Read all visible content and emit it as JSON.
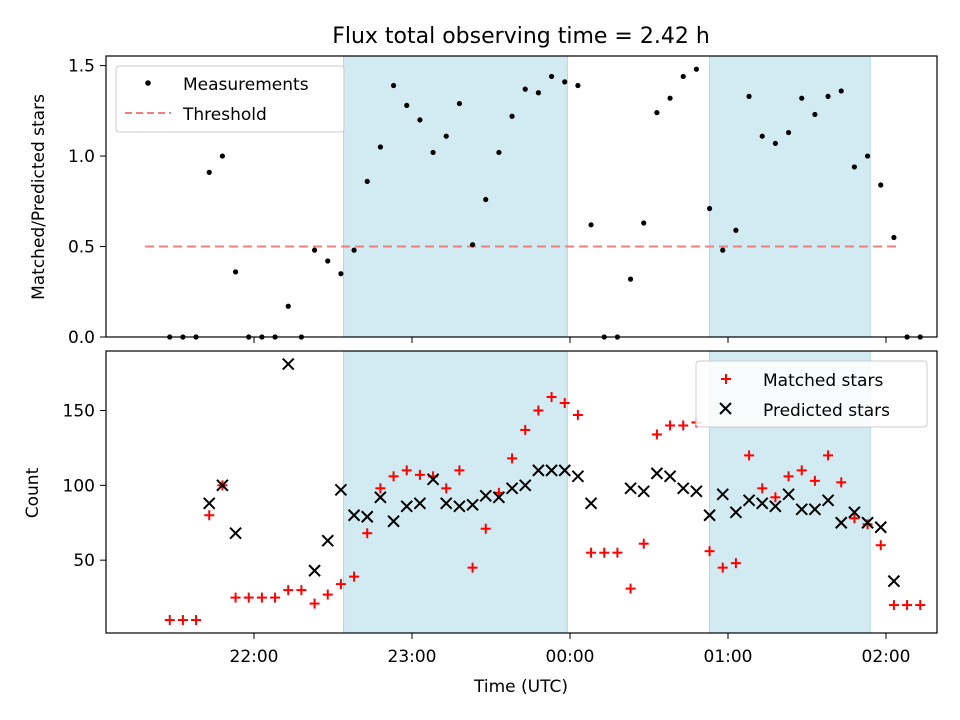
{
  "chart_data": [
    {
      "type": "scatter",
      "title": "Flux total observing time = 2.42 h",
      "xlabel": "",
      "ylabel": "Matched/Predicted stars",
      "ylim": [
        0,
        1.56
      ],
      "yticks": [
        "0.0",
        "0.5",
        "1.0",
        "1.5"
      ],
      "threshold": {
        "name": "Threshold",
        "value": 0.5,
        "x_range": [
          "21:33",
          "23:59"
        ],
        "x_range2": [
          "00:00",
          "02:06"
        ],
        "color": "#f08080"
      },
      "shaded_regions": [
        [
          "22:34",
          "23:59"
        ],
        [
          "00:53",
          "01:54"
        ]
      ],
      "shade_color": "#add8e6",
      "legend": {
        "placement": "top-left",
        "entries": [
          "Measurements",
          "Threshold"
        ]
      },
      "series": [
        {
          "name": "Measurements",
          "marker": "dot",
          "color": "#000000",
          "points": [
            [
              "21:28",
              0
            ],
            [
              "21:33",
              0
            ],
            [
              "21:38",
              0
            ],
            [
              "21:43",
              0.91
            ],
            [
              "21:48",
              1.0
            ],
            [
              "21:53",
              0.36
            ],
            [
              "21:58",
              0
            ],
            [
              "22:03",
              0
            ],
            [
              "22:08",
              0
            ],
            [
              "22:13",
              0.17
            ],
            [
              "22:18",
              0
            ],
            [
              "22:23",
              0.48
            ],
            [
              "22:28",
              0.42
            ],
            [
              "22:33",
              0.35
            ],
            [
              "22:38",
              0.48
            ],
            [
              "22:43",
              0.86
            ],
            [
              "22:48",
              1.05
            ],
            [
              "22:53",
              1.39
            ],
            [
              "22:58",
              1.28
            ],
            [
              "23:03",
              1.2
            ],
            [
              "23:08",
              1.02
            ],
            [
              "23:13",
              1.11
            ],
            [
              "23:18",
              1.29
            ],
            [
              "23:23",
              0.51
            ],
            [
              "23:28",
              0.76
            ],
            [
              "23:33",
              1.02
            ],
            [
              "23:38",
              1.22
            ],
            [
              "23:43",
              1.37
            ],
            [
              "23:48",
              1.35
            ],
            [
              "23:53",
              1.44
            ],
            [
              "23:58",
              1.41
            ],
            [
              "00:03",
              1.39
            ],
            [
              "00:08",
              0.62
            ],
            [
              "00:13",
              0
            ],
            [
              "00:18",
              0
            ],
            [
              "00:23",
              0.32
            ],
            [
              "00:28",
              0.63
            ],
            [
              "00:33",
              1.24
            ],
            [
              "00:38",
              1.32
            ],
            [
              "00:43",
              1.44
            ],
            [
              "00:48",
              1.48
            ],
            [
              "00:53",
              0.71
            ],
            [
              "00:58",
              0.48
            ],
            [
              "01:03",
              0.59
            ],
            [
              "01:08",
              1.33
            ],
            [
              "01:13",
              1.11
            ],
            [
              "01:18",
              1.07
            ],
            [
              "01:23",
              1.13
            ],
            [
              "01:28",
              1.32
            ],
            [
              "01:33",
              1.23
            ],
            [
              "01:38",
              1.33
            ],
            [
              "01:43",
              1.36
            ],
            [
              "01:48",
              0.94
            ],
            [
              "01:53",
              1.0
            ],
            [
              "01:58",
              0.84
            ],
            [
              "02:03",
              0.55
            ],
            [
              "02:08",
              0
            ],
            [
              "02:13",
              0
            ]
          ]
        }
      ]
    },
    {
      "type": "scatter",
      "title": "",
      "xlabel": "Time (UTC)",
      "ylabel": "Count",
      "ylim": [
        0,
        190
      ],
      "yticks": [
        "50",
        "100",
        "150"
      ],
      "xticks": [
        "22:00",
        "23:00",
        "00:00",
        "01:00",
        "02:00"
      ],
      "shaded_regions": [
        [
          "22:34",
          "23:59"
        ],
        [
          "00:53",
          "01:54"
        ]
      ],
      "shade_color": "#add8e6",
      "legend": {
        "placement": "top-right",
        "entries": [
          "Matched stars",
          "Predicted stars"
        ]
      },
      "series": [
        {
          "name": "Matched stars",
          "marker": "plus",
          "color": "#ff0000",
          "points": [
            [
              "21:28",
              10
            ],
            [
              "21:33",
              10
            ],
            [
              "21:38",
              10
            ],
            [
              "21:43",
              80
            ],
            [
              "21:48",
              100
            ],
            [
              "21:53",
              25
            ],
            [
              "21:58",
              25
            ],
            [
              "22:03",
              25
            ],
            [
              "22:08",
              25
            ],
            [
              "22:13",
              30
            ],
            [
              "22:18",
              30
            ],
            [
              "22:23",
              21
            ],
            [
              "22:28",
              27
            ],
            [
              "22:33",
              34
            ],
            [
              "22:38",
              39
            ],
            [
              "22:43",
              68
            ],
            [
              "22:48",
              98
            ],
            [
              "22:53",
              106
            ],
            [
              "22:58",
              110
            ],
            [
              "23:03",
              107
            ],
            [
              "23:08",
              106
            ],
            [
              "23:13",
              98
            ],
            [
              "23:18",
              110
            ],
            [
              "23:23",
              45
            ],
            [
              "23:28",
              71
            ],
            [
              "23:33",
              95
            ],
            [
              "23:38",
              118
            ],
            [
              "23:43",
              137
            ],
            [
              "23:48",
              150
            ],
            [
              "23:53",
              159
            ],
            [
              "23:58",
              155
            ],
            [
              "00:03",
              147
            ],
            [
              "00:08",
              55
            ],
            [
              "00:13",
              55
            ],
            [
              "00:18",
              55
            ],
            [
              "00:23",
              31
            ],
            [
              "00:28",
              61
            ],
            [
              "00:33",
              134
            ],
            [
              "00:38",
              140
            ],
            [
              "00:43",
              140
            ],
            [
              "00:48",
              142
            ],
            [
              "00:53",
              56
            ],
            [
              "00:58",
              45
            ],
            [
              "01:03",
              48
            ],
            [
              "01:08",
              120
            ],
            [
              "01:13",
              98
            ],
            [
              "01:18",
              92
            ],
            [
              "01:23",
              106
            ],
            [
              "01:28",
              110
            ],
            [
              "01:33",
              103
            ],
            [
              "01:38",
              120
            ],
            [
              "01:43",
              102
            ],
            [
              "01:48",
              78
            ],
            [
              "01:53",
              74
            ],
            [
              "01:58",
              60
            ],
            [
              "02:03",
              20
            ],
            [
              "02:08",
              20
            ],
            [
              "02:13",
              20
            ]
          ]
        },
        {
          "name": "Predicted stars",
          "marker": "x",
          "color": "#000000",
          "points": [
            [
              "21:43",
              88
            ],
            [
              "21:48",
              100
            ],
            [
              "21:53",
              68
            ],
            [
              "22:13",
              181
            ],
            [
              "22:23",
              43
            ],
            [
              "22:28",
              63
            ],
            [
              "22:33",
              97
            ],
            [
              "22:38",
              80
            ],
            [
              "22:43",
              79
            ],
            [
              "22:48",
              92
            ],
            [
              "22:53",
              76
            ],
            [
              "22:58",
              86
            ],
            [
              "23:03",
              88
            ],
            [
              "23:08",
              104
            ],
            [
              "23:13",
              88
            ],
            [
              "23:18",
              86
            ],
            [
              "23:23",
              87
            ],
            [
              "23:28",
              93
            ],
            [
              "23:33",
              92
            ],
            [
              "23:38",
              98
            ],
            [
              "23:43",
              100
            ],
            [
              "23:48",
              110
            ],
            [
              "23:53",
              110
            ],
            [
              "23:58",
              110
            ],
            [
              "00:03",
              106
            ],
            [
              "00:08",
              88
            ],
            [
              "00:23",
              98
            ],
            [
              "00:28",
              96
            ],
            [
              "00:33",
              108
            ],
            [
              "00:38",
              106
            ],
            [
              "00:43",
              98
            ],
            [
              "00:48",
              96
            ],
            [
              "00:53",
              80
            ],
            [
              "00:58",
              94
            ],
            [
              "01:03",
              82
            ],
            [
              "01:08",
              90
            ],
            [
              "01:13",
              88
            ],
            [
              "01:18",
              86
            ],
            [
              "01:23",
              94
            ],
            [
              "01:28",
              84
            ],
            [
              "01:33",
              84
            ],
            [
              "01:38",
              90
            ],
            [
              "01:43",
              75
            ],
            [
              "01:48",
              82
            ],
            [
              "01:53",
              75
            ],
            [
              "01:58",
              72
            ],
            [
              "02:03",
              36
            ]
          ]
        }
      ]
    }
  ]
}
